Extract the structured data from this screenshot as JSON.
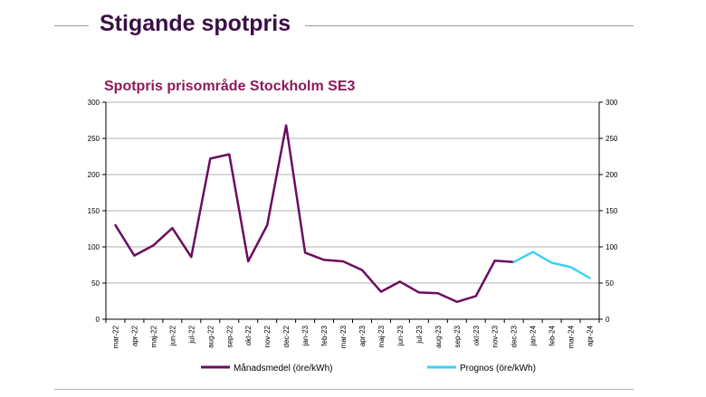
{
  "slide": {
    "title": "Stigande spotpris"
  },
  "colors": {
    "title": "#3b0f45",
    "chart_title": "#8b1a5a",
    "actual_series": "#6a0d5f",
    "forecast_series": "#3fd0f0",
    "grid": "#b0b0b0"
  },
  "chart_data": {
    "type": "line",
    "title": "Spotpris prisområde Stockholm SE3",
    "xlabel": "",
    "ylabel": "",
    "ylim": [
      0,
      300
    ],
    "yticks": [
      0,
      50,
      100,
      150,
      200,
      250,
      300
    ],
    "secondary_yaxis": true,
    "grid": "horizontal",
    "legend_position": "bottom",
    "categories": [
      "mar-22",
      "apr-22",
      "maj-22",
      "jun-22",
      "jul-22",
      "aug-22",
      "sep-22",
      "okt-22",
      "nov-22",
      "dec-22",
      "jan-23",
      "feb-23",
      "mar-23",
      "apr-23",
      "maj-23",
      "jun-23",
      "jul-23",
      "aug-23",
      "sep-23",
      "okt-23",
      "nov-23",
      "dec-23",
      "jan-24",
      "feb-24",
      "mar-24",
      "apr-24"
    ],
    "series": [
      {
        "name": "Månadsmedel (öre/kWh)",
        "color": "#6a0d5f",
        "values": [
          130,
          88,
          102,
          126,
          86,
          222,
          228,
          80,
          130,
          268,
          92,
          82,
          80,
          68,
          38,
          52,
          37,
          36,
          24,
          32,
          81,
          79,
          null,
          null,
          null,
          null
        ]
      },
      {
        "name": "Prognos (öre/kWh)",
        "color": "#3fd0f0",
        "values": [
          null,
          null,
          null,
          null,
          null,
          null,
          null,
          null,
          null,
          null,
          null,
          null,
          null,
          null,
          null,
          null,
          null,
          null,
          null,
          null,
          null,
          79,
          93,
          78,
          72,
          57
        ]
      }
    ]
  }
}
